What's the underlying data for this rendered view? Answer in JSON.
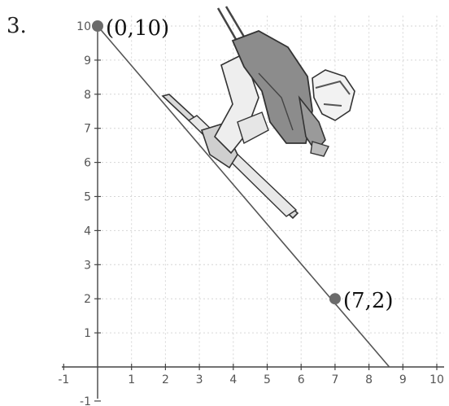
{
  "problem_number": "3.",
  "chart_data": {
    "type": "line",
    "title": "",
    "xlabel": "",
    "ylabel": "",
    "xlim": [
      -1,
      10
    ],
    "ylim": [
      -1,
      10
    ],
    "grid": true,
    "x_ticks": [
      -1,
      1,
      2,
      3,
      4,
      5,
      6,
      7,
      8,
      9,
      10
    ],
    "y_ticks": [
      -1,
      1,
      2,
      3,
      4,
      5,
      6,
      7,
      8,
      9,
      10
    ],
    "x_tick_labels": [
      "-1",
      "1",
      "2",
      "3",
      "4",
      "5",
      "6",
      "7",
      "8",
      "9",
      "10"
    ],
    "y_tick_labels": [
      "-1",
      "1",
      "2",
      "3",
      "4",
      "5",
      "6",
      "7",
      "8",
      "9",
      "10"
    ],
    "line": {
      "x": [
        0,
        8.6
      ],
      "y": [
        10,
        0
      ]
    },
    "points": [
      {
        "x": 0,
        "y": 10,
        "label": "(0,10)"
      },
      {
        "x": 7,
        "y": 2,
        "label": "(7,2)"
      }
    ],
    "colors": {
      "line": "#555555",
      "point": "#6b6b6b"
    }
  },
  "illustration": {
    "icon": "skier-icon"
  }
}
